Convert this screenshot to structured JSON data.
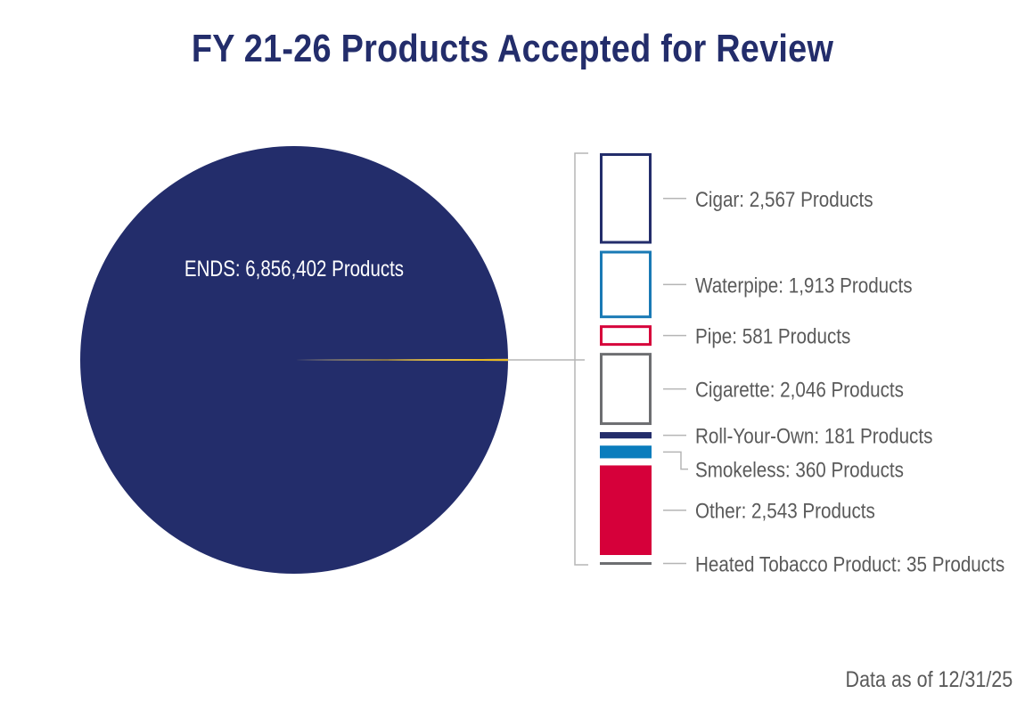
{
  "chart_data": {
    "type": "pie",
    "title": "FY 21-26 Products Accepted for Review",
    "main_slice": {
      "name": "ENDS",
      "value": 6856402,
      "label": "ENDS: 6,856,402 Products",
      "color": "#232d6b"
    },
    "other_slice_color": "#e8b923",
    "breakout": [
      {
        "name": "Cigar",
        "value": 2567,
        "label": "Cigar: 2,567 Products",
        "color": "#232d6b",
        "style": "outline"
      },
      {
        "name": "Waterpipe",
        "value": 1913,
        "label": "Waterpipe: 1,913 Products",
        "color": "#1a7ab5",
        "style": "outline"
      },
      {
        "name": "Pipe",
        "value": 581,
        "label": "Pipe: 581 Products",
        "color": "#d6003a",
        "style": "outline"
      },
      {
        "name": "Cigarette",
        "value": 2046,
        "label": "Cigarette: 2,046 Products",
        "color": "#6d6e71",
        "style": "outline"
      },
      {
        "name": "Roll-Your-Own",
        "value": 181,
        "label": "Roll-Your-Own: 181 Products",
        "color": "#232d6b",
        "style": "solid"
      },
      {
        "name": "Smokeless",
        "value": 360,
        "label": "Smokeless: 360 Products",
        "color": "#0b7dbd",
        "style": "solid"
      },
      {
        "name": "Other",
        "value": 2543,
        "label": "Other: 2,543 Products",
        "color": "#d6003a",
        "style": "solid"
      },
      {
        "name": "Heated Tobacco Product",
        "value": 35,
        "label": "Heated Tobacco Product: 35 Products",
        "color": "#6d6e71",
        "style": "solid"
      }
    ]
  },
  "footnote": "Data as of 12/31/25"
}
